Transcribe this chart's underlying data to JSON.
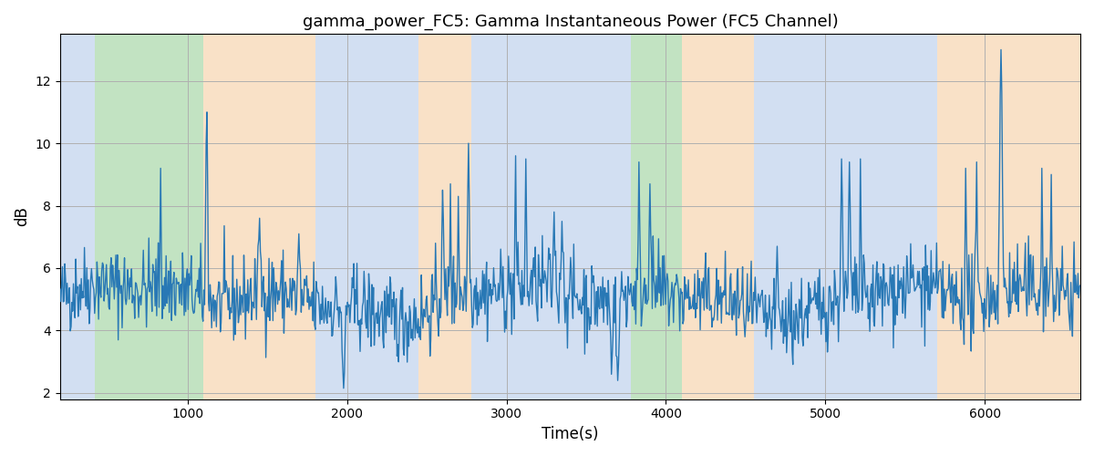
{
  "title": "gamma_power_FC5: Gamma Instantaneous Power (FC5 Channel)",
  "xlabel": "Time(s)",
  "ylabel": "dB",
  "xlim": [
    200,
    6600
  ],
  "ylim": [
    1.8,
    13.5
  ],
  "yticks": [
    2,
    4,
    6,
    8,
    10,
    12
  ],
  "xticks": [
    1000,
    2000,
    3000,
    4000,
    5000,
    6000
  ],
  "line_color": "#2878b5",
  "line_width": 1.0,
  "bg_color": "#ffffff",
  "grid_color": "#b0b0b0",
  "bands": [
    {
      "xmin": 200,
      "xmax": 420,
      "color": "#aec6e8",
      "alpha": 0.55
    },
    {
      "xmin": 420,
      "xmax": 1100,
      "color": "#90cc90",
      "alpha": 0.55
    },
    {
      "xmin": 1100,
      "xmax": 1800,
      "color": "#f5c99a",
      "alpha": 0.55
    },
    {
      "xmin": 1800,
      "xmax": 2450,
      "color": "#aec6e8",
      "alpha": 0.55
    },
    {
      "xmin": 2450,
      "xmax": 2780,
      "color": "#f5c99a",
      "alpha": 0.55
    },
    {
      "xmin": 2780,
      "xmax": 3680,
      "color": "#aec6e8",
      "alpha": 0.55
    },
    {
      "xmin": 3680,
      "xmax": 3780,
      "color": "#aec6e8",
      "alpha": 0.55
    },
    {
      "xmin": 3780,
      "xmax": 4100,
      "color": "#90cc90",
      "alpha": 0.55
    },
    {
      "xmin": 4100,
      "xmax": 4550,
      "color": "#f5c99a",
      "alpha": 0.55
    },
    {
      "xmin": 4550,
      "xmax": 5700,
      "color": "#aec6e8",
      "alpha": 0.55
    },
    {
      "xmin": 5700,
      "xmax": 6600,
      "color": "#f5c99a",
      "alpha": 0.55
    }
  ],
  "seed": 42,
  "n_points": 1300
}
